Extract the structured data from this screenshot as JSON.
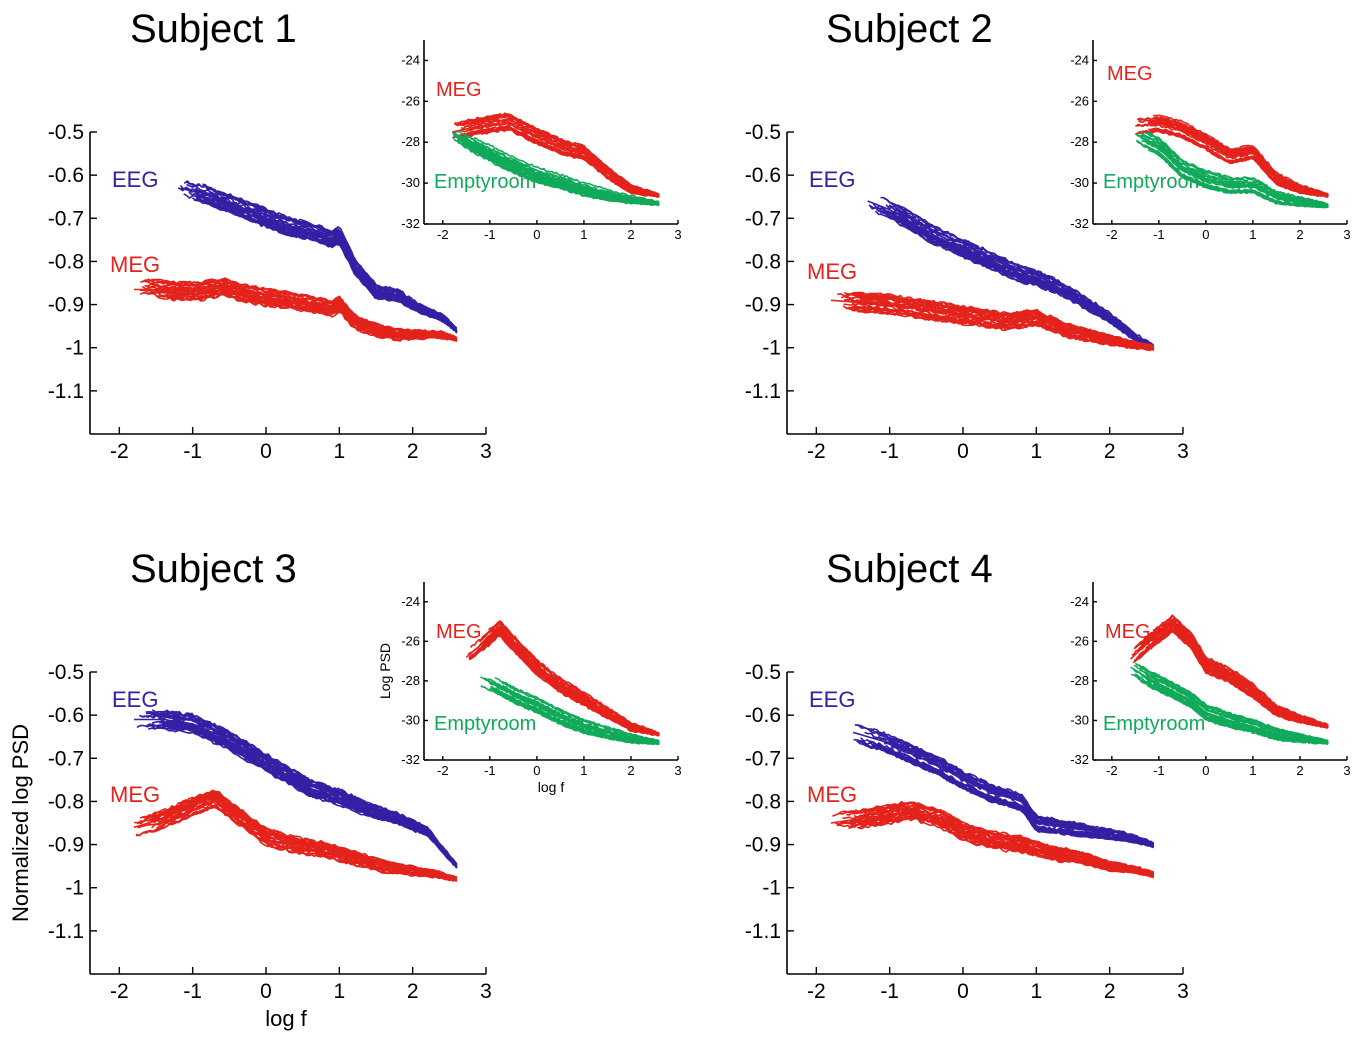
{
  "colors": {
    "eeg": "#3320a4",
    "meg": "#e3231c",
    "emptyroom": "#11a95a",
    "axis": "#000000"
  },
  "chart_data": [
    {
      "type": "line",
      "subplot": "Subject 1 main",
      "title": "Subject 1",
      "xlabel": "",
      "ylabel": "",
      "xlim": [
        -2.4,
        3
      ],
      "ylim": [
        -1.2,
        -0.5
      ],
      "xticks": [
        "-2",
        "-1",
        "0",
        "1",
        "2",
        "3"
      ],
      "yticks": [
        "-0.5",
        "-0.6",
        "-0.7",
        "-0.8",
        "-0.9",
        "-1",
        "-1.1"
      ],
      "grid": false,
      "series": [
        {
          "name": "EEG",
          "color_key": "eeg",
          "x": [
            -1.2,
            -0.9,
            -0.6,
            -0.3,
            0,
            0.3,
            0.6,
            0.9,
            1.0,
            1.2,
            1.5,
            1.8,
            2.1,
            2.4,
            2.6
          ],
          "y": [
            -0.63,
            -0.64,
            -0.66,
            -0.68,
            -0.7,
            -0.72,
            -0.73,
            -0.75,
            -0.74,
            -0.81,
            -0.87,
            -0.88,
            -0.91,
            -0.93,
            -0.96
          ]
        },
        {
          "name": "MEG",
          "color_key": "meg",
          "x": [
            -1.8,
            -1.5,
            -1.2,
            -0.9,
            -0.6,
            -0.3,
            0,
            0.3,
            0.6,
            0.9,
            1.0,
            1.2,
            1.5,
            1.8,
            2.1,
            2.4,
            2.6
          ],
          "y": [
            -0.865,
            -0.865,
            -0.87,
            -0.87,
            -0.86,
            -0.875,
            -0.885,
            -0.89,
            -0.9,
            -0.91,
            -0.9,
            -0.94,
            -0.96,
            -0.97,
            -0.97,
            -0.97,
            -0.98
          ]
        }
      ],
      "annotations": [
        "EEG",
        "MEG"
      ]
    },
    {
      "type": "line",
      "subplot": "Subject 1 inset",
      "xlabel": "",
      "ylabel": "",
      "xlim": [
        -2.4,
        3
      ],
      "ylim": [
        -32,
        -23
      ],
      "xticks": [
        "-2",
        "-1",
        "0",
        "1",
        "2",
        "3"
      ],
      "yticks": [
        "-24",
        "-26",
        "-28",
        "-30",
        "-32"
      ],
      "series": [
        {
          "name": "MEG",
          "color_key": "meg",
          "x": [
            -1.8,
            -1.2,
            -0.6,
            0,
            0.6,
            1.0,
            1.5,
            2.0,
            2.6
          ],
          "y": [
            -27.5,
            -27.2,
            -27,
            -27.7,
            -28.3,
            -28.5,
            -29.5,
            -30.3,
            -30.6
          ]
        },
        {
          "name": "Emptyroom",
          "color_key": "emptyroom",
          "x": [
            -1.8,
            -1.2,
            -0.6,
            0,
            0.6,
            1.0,
            1.5,
            2.0,
            2.6
          ],
          "y": [
            -27.5,
            -28.3,
            -29,
            -29.6,
            -30,
            -30.3,
            -30.6,
            -30.8,
            -31
          ]
        }
      ],
      "annotations": [
        "MEG",
        "Emptyroom"
      ]
    },
    {
      "type": "line",
      "subplot": "Subject 2 main",
      "title": "Subject 2",
      "xlim": [
        -2.4,
        3
      ],
      "ylim": [
        -1.2,
        -0.5
      ],
      "xticks": [
        "-2",
        "-1",
        "0",
        "1",
        "2",
        "3"
      ],
      "yticks": [
        "-0.5",
        "-0.6",
        "-0.7",
        "-0.8",
        "-0.9",
        "-1",
        "-1.1"
      ],
      "series": [
        {
          "name": "EEG",
          "color_key": "eeg",
          "x": [
            -1.3,
            -1.0,
            -0.7,
            -0.4,
            0,
            0.4,
            0.8,
            1.0,
            1.3,
            1.6,
            2.0,
            2.3,
            2.6
          ],
          "y": [
            -0.66,
            -0.68,
            -0.71,
            -0.74,
            -0.77,
            -0.8,
            -0.83,
            -0.84,
            -0.86,
            -0.89,
            -0.93,
            -0.97,
            -1.0
          ]
        },
        {
          "name": "MEG",
          "color_key": "meg",
          "x": [
            -1.8,
            -1.4,
            -1.0,
            -0.6,
            -0.2,
            0.2,
            0.6,
            1.0,
            1.4,
            1.8,
            2.2,
            2.6
          ],
          "y": [
            -0.89,
            -0.895,
            -0.9,
            -0.91,
            -0.92,
            -0.93,
            -0.94,
            -0.93,
            -0.96,
            -0.975,
            -0.99,
            -1.0
          ]
        }
      ],
      "annotations": [
        "EEG",
        "MEG"
      ]
    },
    {
      "type": "line",
      "subplot": "Subject 2 inset",
      "xlim": [
        -2.4,
        3
      ],
      "ylim": [
        -32,
        -23
      ],
      "xticks": [
        "-2",
        "-1",
        "0",
        "1",
        "2",
        "3"
      ],
      "yticks": [
        "-24",
        "-26",
        "-28",
        "-30",
        "-32"
      ],
      "series": [
        {
          "name": "MEG",
          "color_key": "meg",
          "x": [
            -1.5,
            -1.0,
            -0.5,
            0,
            0.5,
            1.0,
            1.5,
            2.0,
            2.6
          ],
          "y": [
            -27.2,
            -27.1,
            -27.4,
            -28,
            -28.7,
            -28.5,
            -29.8,
            -30.3,
            -30.6
          ]
        },
        {
          "name": "Emptyroom",
          "color_key": "emptyroom",
          "x": [
            -1.5,
            -1.0,
            -0.5,
            0,
            0.5,
            1.0,
            1.5,
            2.0,
            2.6
          ],
          "y": [
            -27.6,
            -28.2,
            -29.3,
            -29.8,
            -30.1,
            -30.1,
            -30.7,
            -30.9,
            -31.1
          ]
        }
      ],
      "annotations": [
        "MEG",
        "Emptyroom"
      ]
    },
    {
      "type": "line",
      "subplot": "Subject 3 main",
      "title": "Subject 3",
      "xlabel": "log f",
      "ylabel": "Normalized log PSD",
      "xlim": [
        -2.4,
        3
      ],
      "ylim": [
        -1.2,
        -0.5
      ],
      "xticks": [
        "-2",
        "-1",
        "0",
        "1",
        "2",
        "3"
      ],
      "yticks": [
        "-0.5",
        "-0.6",
        "-0.7",
        "-0.8",
        "-0.9",
        "-1",
        "-1.1"
      ],
      "series": [
        {
          "name": "EEG",
          "color_key": "eeg",
          "x": [
            -1.8,
            -1.4,
            -1.0,
            -0.6,
            -0.2,
            0.2,
            0.6,
            1.0,
            1.4,
            1.8,
            2.2,
            2.6
          ],
          "y": [
            -0.61,
            -0.61,
            -0.62,
            -0.65,
            -0.69,
            -0.73,
            -0.77,
            -0.79,
            -0.82,
            -0.84,
            -0.87,
            -0.95
          ]
        },
        {
          "name": "MEG",
          "color_key": "meg",
          "x": [
            -1.8,
            -1.4,
            -1.0,
            -0.7,
            -0.4,
            0,
            0.4,
            0.8,
            1.2,
            1.6,
            2.0,
            2.4,
            2.6
          ],
          "y": [
            -0.86,
            -0.84,
            -0.81,
            -0.79,
            -0.83,
            -0.88,
            -0.9,
            -0.91,
            -0.93,
            -0.95,
            -0.96,
            -0.97,
            -0.98
          ]
        }
      ],
      "annotations": [
        "EEG",
        "MEG"
      ]
    },
    {
      "type": "line",
      "subplot": "Subject 3 inset",
      "xlabel": "log f",
      "ylabel": "Log PSD",
      "xlim": [
        -2.4,
        3
      ],
      "ylim": [
        -32,
        -23
      ],
      "xticks": [
        "-2",
        "-1",
        "0",
        "1",
        "2",
        "3"
      ],
      "yticks": [
        "-24",
        "-26",
        "-28",
        "-30",
        "-32"
      ],
      "series": [
        {
          "name": "MEG",
          "color_key": "meg",
          "x": [
            -1.5,
            -1.2,
            -0.8,
            -0.4,
            0,
            0.5,
            1.0,
            1.5,
            2.0,
            2.6
          ],
          "y": [
            -26.8,
            -26.2,
            -25.3,
            -26.3,
            -27.3,
            -28.2,
            -28.9,
            -29.6,
            -30.3,
            -30.7
          ]
        },
        {
          "name": "Emptyroom",
          "color_key": "emptyroom",
          "x": [
            -1.2,
            -0.8,
            -0.4,
            0,
            0.5,
            1.0,
            1.5,
            2.0,
            2.6
          ],
          "y": [
            -27.8,
            -28.3,
            -28.8,
            -29.2,
            -29.8,
            -30.3,
            -30.6,
            -30.9,
            -31.1
          ]
        }
      ],
      "annotations": [
        "MEG",
        "Emptyroom"
      ]
    },
    {
      "type": "line",
      "subplot": "Subject 4 main",
      "title": "Subject 4",
      "xlim": [
        -2.4,
        3
      ],
      "ylim": [
        -1.2,
        -0.5
      ],
      "xticks": [
        "-2",
        "-1",
        "0",
        "1",
        "2",
        "3"
      ],
      "yticks": [
        "-0.5",
        "-0.6",
        "-0.7",
        "-0.8",
        "-0.9",
        "-1",
        "-1.1"
      ],
      "series": [
        {
          "name": "EEG",
          "color_key": "eeg",
          "x": [
            -1.5,
            -1.1,
            -0.7,
            -0.3,
            0,
            0.4,
            0.8,
            1.0,
            1.4,
            1.8,
            2.2,
            2.6
          ],
          "y": [
            -0.64,
            -0.66,
            -0.69,
            -0.72,
            -0.75,
            -0.78,
            -0.8,
            -0.85,
            -0.86,
            -0.87,
            -0.88,
            -0.9
          ]
        },
        {
          "name": "MEG",
          "color_key": "meg",
          "x": [
            -1.8,
            -1.4,
            -1.0,
            -0.7,
            -0.3,
            0,
            0.4,
            0.8,
            1.2,
            1.6,
            2.0,
            2.4,
            2.6
          ],
          "y": [
            -0.85,
            -0.84,
            -0.83,
            -0.82,
            -0.84,
            -0.87,
            -0.89,
            -0.9,
            -0.92,
            -0.93,
            -0.95,
            -0.96,
            -0.97
          ]
        }
      ],
      "annotations": [
        "EEG",
        "MEG"
      ]
    },
    {
      "type": "line",
      "subplot": "Subject 4 inset",
      "xlim": [
        -2.4,
        3
      ],
      "ylim": [
        -32,
        -23
      ],
      "xticks": [
        "-2",
        "-1",
        "0",
        "1",
        "2",
        "3"
      ],
      "yticks": [
        "-24",
        "-26",
        "-28",
        "-30",
        "-32"
      ],
      "series": [
        {
          "name": "MEG",
          "color_key": "meg",
          "x": [
            -1.6,
            -1.2,
            -0.7,
            -0.3,
            0,
            0.5,
            1.0,
            1.5,
            2.0,
            2.6
          ],
          "y": [
            -26.9,
            -26.0,
            -25.1,
            -26.0,
            -27.2,
            -27.7,
            -28.5,
            -29.5,
            -29.9,
            -30.3
          ]
        },
        {
          "name": "Emptyroom",
          "color_key": "emptyroom",
          "x": [
            -1.6,
            -1.2,
            -0.7,
            -0.3,
            0,
            0.5,
            1.0,
            1.5,
            2.0,
            2.6
          ],
          "y": [
            -27.3,
            -27.9,
            -28.5,
            -29.0,
            -29.6,
            -30.0,
            -30.3,
            -30.7,
            -30.9,
            -31.1
          ]
        }
      ],
      "annotations": [
        "MEG",
        "Emptyroom"
      ]
    }
  ]
}
